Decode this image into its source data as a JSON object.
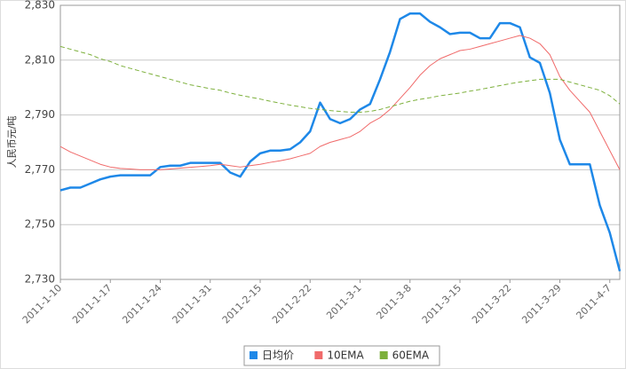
{
  "chart_data": {
    "type": "line",
    "y_label": "人民币元/吨",
    "categories": [
      "2011-1-10",
      null,
      null,
      null,
      null,
      "2011-1-17",
      null,
      null,
      null,
      null,
      "2011-1-24",
      null,
      null,
      null,
      null,
      "2011-1-31",
      null,
      null,
      null,
      null,
      "2011-2-15",
      null,
      null,
      null,
      null,
      "2011-2-22",
      null,
      null,
      null,
      null,
      "2011-3-1",
      null,
      null,
      null,
      null,
      "2011-3-8",
      null,
      null,
      null,
      null,
      "2011-3-15",
      null,
      null,
      null,
      null,
      "2011-3-22",
      null,
      null,
      null,
      null,
      "2011-3-29",
      null,
      null,
      null,
      null,
      "2011-4-7",
      null
    ],
    "series": [
      {
        "name": "日均价",
        "color": "#1e88e8",
        "width": 2.5,
        "dashed": false,
        "values": [
          2762.5,
          2763.5,
          2763.5,
          2765,
          2766.5,
          2767.5,
          2768,
          2768,
          2768,
          2768,
          2771,
          2771.5,
          2771.5,
          2772.5,
          2772.5,
          2772.5,
          2772.5,
          2769,
          2767.5,
          2773,
          2776,
          2777,
          2777,
          2777.5,
          2780,
          2784,
          2794.5,
          2788.5,
          2787,
          2788.5,
          2792,
          2794,
          2803,
          2813,
          2825,
          2827,
          2827,
          2824,
          2822,
          2819.5,
          2820,
          2820,
          2818,
          2818,
          2823.5,
          2823.5,
          2822,
          2811,
          2809,
          2798,
          2781,
          2772,
          2772,
          2772,
          2757,
          2747,
          2733
        ]
      },
      {
        "name": "10EMA",
        "color": "#f06a6a",
        "width": 1,
        "dashed": false,
        "values": [
          2778.5,
          2776.5,
          2775,
          2773.5,
          2772,
          2771,
          2770.5,
          2770.3,
          2770,
          2770,
          2770,
          2770.3,
          2770.6,
          2770.9,
          2771.2,
          2771.5,
          2772,
          2771.5,
          2771,
          2771.5,
          2772,
          2772.7,
          2773.3,
          2774,
          2775,
          2776,
          2778.5,
          2780,
          2781,
          2782,
          2784,
          2787,
          2789,
          2792,
          2796,
          2800,
          2804.5,
          2808,
          2810.5,
          2812,
          2813.5,
          2814,
          2815,
          2816,
          2817,
          2818,
          2819,
          2818,
          2816,
          2812,
          2804,
          2799,
          2795,
          2791,
          2784,
          2777,
          2770
        ]
      },
      {
        "name": "60EMA",
        "color": "#7db03c",
        "width": 1,
        "dashed": true,
        "values": [
          2815,
          2814,
          2813,
          2812,
          2810.5,
          2809.5,
          2808,
          2807,
          2806,
          2805,
          2804,
          2803,
          2802,
          2801,
          2800.3,
          2799.6,
          2799,
          2798,
          2797.2,
          2796.5,
          2795.8,
          2795,
          2794.3,
          2793.6,
          2793,
          2792.4,
          2792,
          2791.6,
          2791.3,
          2791,
          2791,
          2791.3,
          2792,
          2793,
          2794,
          2795,
          2795.7,
          2796.3,
          2797,
          2797.5,
          2798,
          2798.7,
          2799.3,
          2800,
          2800.7,
          2801.4,
          2802,
          2802.5,
          2803,
          2803,
          2803,
          2802,
          2801,
          2800,
          2799,
          2797,
          2794
        ]
      }
    ],
    "ylim": [
      2730,
      2830
    ],
    "yticks": [
      {
        "value": 2730,
        "label": "2,730"
      },
      {
        "value": 2750,
        "label": "2,750"
      },
      {
        "value": 2770,
        "label": "2,770"
      },
      {
        "value": 2790,
        "label": "2,790"
      },
      {
        "value": 2810,
        "label": "2,810"
      },
      {
        "value": 2830,
        "label": "2,830"
      }
    ],
    "grid": true,
    "legend": "bottom"
  }
}
